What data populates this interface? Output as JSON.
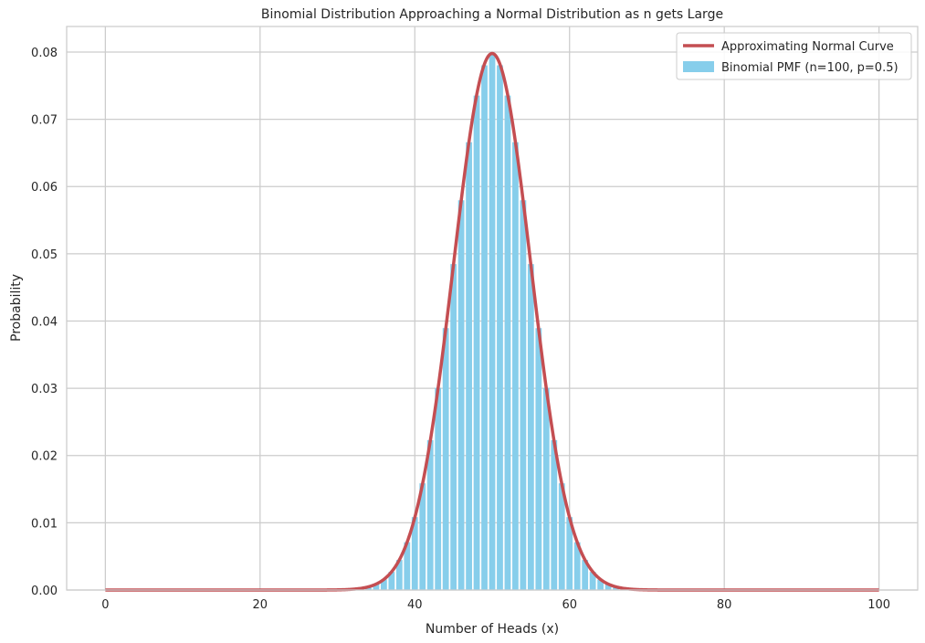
{
  "chart_data": {
    "type": "bar",
    "title": "Binomial Distribution Approaching a Normal Distribution as n gets Large",
    "xlabel": "Number of Heads (x)",
    "ylabel": "Probability",
    "xlim": [
      -5,
      105
    ],
    "ylim": [
      0,
      0.0838
    ],
    "xticks": [
      0,
      20,
      40,
      60,
      80,
      100
    ],
    "yticks": [
      0.0,
      0.01,
      0.02,
      0.03,
      0.04,
      0.05,
      0.06,
      0.07,
      0.08
    ],
    "ytick_labels": [
      "0.00",
      "0.01",
      "0.02",
      "0.03",
      "0.04",
      "0.05",
      "0.06",
      "0.07",
      "0.08"
    ],
    "grid": true,
    "legend_position": "top-right",
    "series": [
      {
        "name": "Binomial PMF (n=100, p=0.5)",
        "kind": "bar",
        "color": "#87ceeb",
        "x": [
          0,
          1,
          2,
          3,
          4,
          5,
          6,
          7,
          8,
          9,
          10,
          11,
          12,
          13,
          14,
          15,
          16,
          17,
          18,
          19,
          20,
          21,
          22,
          23,
          24,
          25,
          26,
          27,
          28,
          29,
          30,
          31,
          32,
          33,
          34,
          35,
          36,
          37,
          38,
          39,
          40,
          41,
          42,
          43,
          44,
          45,
          46,
          47,
          48,
          49,
          50,
          51,
          52,
          53,
          54,
          55,
          56,
          57,
          58,
          59,
          60,
          61,
          62,
          63,
          64,
          65,
          66,
          67,
          68,
          69,
          70,
          71,
          72,
          73,
          74,
          75,
          76,
          77,
          78,
          79,
          80,
          81,
          82,
          83,
          84,
          85,
          86,
          87,
          88,
          89,
          90,
          91,
          92,
          93,
          94,
          95,
          96,
          97,
          98,
          99,
          100
        ],
        "values": [
          0,
          0,
          0,
          0,
          0,
          0,
          0,
          0,
          0,
          0,
          0,
          0,
          0,
          0,
          0,
          0,
          0,
          0,
          0,
          0,
          0,
          0,
          0,
          0,
          0,
          0,
          0,
          0,
          0,
          0,
          2e-05,
          5e-05,
          0.00011,
          0.00023,
          0.00046,
          0.00086,
          0.00156,
          0.0027,
          0.00447,
          0.00711,
          0.01084,
          0.01587,
          0.02229,
          0.03007,
          0.03895,
          0.04847,
          0.05796,
          0.06659,
          0.07353,
          0.07803,
          0.07959,
          0.07803,
          0.07353,
          0.06659,
          0.05796,
          0.04847,
          0.03895,
          0.03007,
          0.02229,
          0.01587,
          0.01084,
          0.00711,
          0.00447,
          0.0027,
          0.00156,
          0.00086,
          0.00046,
          0.00023,
          0.00011,
          5e-05,
          2e-05,
          0,
          0,
          0,
          0,
          0,
          0,
          0,
          0,
          0,
          0,
          0,
          0,
          0,
          0,
          0,
          0,
          0,
          0,
          0,
          0,
          0,
          0,
          0,
          0,
          0,
          0,
          0,
          0,
          0,
          0
        ]
      },
      {
        "name": "Approximating Normal Curve",
        "kind": "line",
        "color": "#c44e52",
        "mean": 50,
        "std": 5
      }
    ]
  }
}
